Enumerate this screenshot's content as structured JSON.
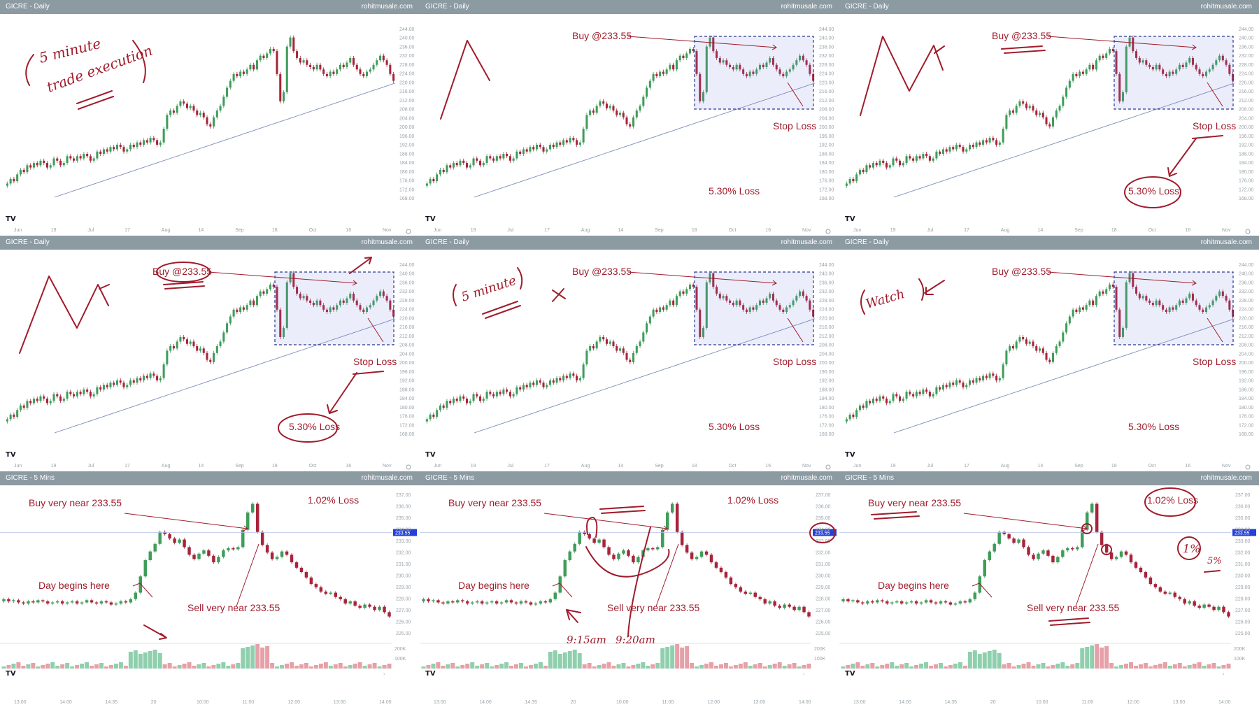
{
  "colors": {
    "header_bg": "#8c9aa2",
    "candle_up": "#3f9d5a",
    "candle_down": "#a8243a",
    "ma_line": "#7a8fb8",
    "annotation": "#a01c2c",
    "box_border": "#2a3690",
    "price_tag": "#2440d8"
  },
  "icons": {
    "brand": "tradingview-logo-icon",
    "settings": "gear-icon",
    "scroll": "chevron-right-icon"
  },
  "annotations": {
    "five_minute_execution_line1": "5 minute",
    "five_minute_execution_line2": "trade execution",
    "buy_level": "Buy @233.55",
    "stop_loss": "Stop Loss",
    "loss_daily": "5.30% Loss",
    "five_minute": "5 minute",
    "watch": "Watch",
    "buy_near": "Buy very near 233.55",
    "sell_near": "Sell very near 233.55",
    "day_begins": "Day begins here",
    "loss_intraday": "1.02% Loss",
    "time_915": "9:15am",
    "time_920": "9:20am",
    "one_percent": "1%",
    "five_percent": "5%"
  },
  "panels": [
    {
      "title": "GICRE - Daily",
      "site": "rohitmusale.com"
    },
    {
      "title": "GICRE - Daily",
      "site": "rohitmusale.com"
    },
    {
      "title": "GICRE - Daily",
      "site": "rohitmusale.com"
    },
    {
      "title": "GICRE - Daily",
      "site": "rohitmusale.com"
    },
    {
      "title": "GICRE - Daily",
      "site": "rohitmusale.com"
    },
    {
      "title": "GICRE - Daily",
      "site": "rohitmusale.com"
    },
    {
      "title": "GICRE - 5 Mins",
      "site": "rohitmusale.com"
    },
    {
      "title": "GICRE - 5 Mins",
      "site": "rohitmusale.com"
    },
    {
      "title": "GICRE - 5 Mins",
      "site": "rohitmusale.com"
    }
  ],
  "chart_data": [
    {
      "type": "candlestick",
      "title": "GICRE - Daily",
      "timeframe": "Daily",
      "ylim": [
        168,
        244
      ],
      "y_ticks": [
        "244.00",
        "240.00",
        "236.00",
        "232.00",
        "228.00",
        "224.00",
        "220.00",
        "216.00",
        "212.00",
        "208.00",
        "204.00",
        "200.00",
        "196.00",
        "192.00",
        "188.00",
        "184.00",
        "180.00",
        "176.00",
        "172.00",
        "168.00"
      ],
      "x_ticks": [
        "Jun",
        "19",
        "Jul",
        "17",
        "Aug",
        "14",
        "Sep",
        "18",
        "Oct",
        "16",
        "Nov"
      ],
      "series": [
        {
          "name": "",
          "close": [
            174,
            176,
            175,
            178,
            180,
            179,
            182,
            181,
            183,
            182,
            184,
            183,
            181,
            182,
            185,
            184,
            182,
            183,
            186,
            185,
            184,
            186,
            185,
            187,
            186,
            184,
            185,
            188,
            187,
            189,
            188,
            190,
            189,
            191,
            190,
            188,
            189,
            191,
            190,
            192,
            191,
            193,
            192,
            194,
            193,
            191,
            192,
            198,
            204,
            206,
            205,
            208,
            210,
            209,
            207,
            208,
            206,
            204,
            205,
            203,
            200,
            199,
            203,
            206,
            208,
            212,
            216,
            219,
            222,
            221,
            223,
            222,
            224,
            226,
            224,
            228,
            230,
            229,
            231,
            233,
            232,
            222,
            210,
            214,
            234,
            238,
            232,
            229,
            227,
            228,
            226,
            225,
            224,
            226,
            224,
            222,
            221,
            223,
            222,
            224,
            226,
            225,
            227,
            229,
            226,
            224,
            222,
            221,
            223,
            224,
            226,
            228,
            230,
            228,
            226,
            222,
            219
          ],
          "open": [
            173,
            174,
            176,
            175,
            178,
            180,
            179,
            182,
            181,
            183,
            182,
            184,
            183,
            181,
            182,
            185,
            184,
            182,
            183,
            186,
            185,
            184,
            186,
            185,
            187,
            186,
            184,
            185,
            188,
            187,
            189,
            188,
            190,
            189,
            191,
            190,
            188,
            189,
            191,
            190,
            192,
            191,
            193,
            192,
            194,
            193,
            191,
            192,
            198,
            204,
            206,
            205,
            208,
            210,
            209,
            207,
            208,
            206,
            204,
            205,
            203,
            200,
            199,
            203,
            206,
            208,
            212,
            216,
            219,
            222,
            221,
            223,
            222,
            224,
            226,
            224,
            228,
            230,
            229,
            231,
            233,
            232,
            222,
            210,
            214,
            234,
            238,
            232,
            229,
            227,
            228,
            226,
            225,
            224,
            226,
            224,
            222,
            221,
            223,
            222,
            224,
            226,
            225,
            227,
            229,
            226,
            224,
            222,
            221,
            223,
            224,
            226,
            228,
            230,
            228,
            226,
            222
          ]
        },
        {
          "name": "",
          "values": [
            168,
            169,
            170,
            171,
            172,
            173,
            174,
            175,
            176,
            177,
            178,
            179,
            180,
            181,
            182,
            183,
            184,
            185,
            186,
            187,
            188,
            189,
            190,
            191,
            192,
            193,
            194,
            195,
            196,
            197,
            198,
            199,
            200,
            201,
            202,
            203,
            204,
            205,
            206,
            207,
            208,
            209,
            210,
            211,
            212,
            213,
            214,
            215,
            216,
            217,
            218
          ]
        }
      ],
      "annotations": [
        "5 minute",
        "trade execution"
      ]
    },
    {
      "type": "candlestick",
      "title": "GICRE - Daily",
      "timeframe": "Daily",
      "ylim": [
        168,
        244
      ],
      "y_ticks": [
        "244.00",
        "240.00",
        "236.00",
        "232.00",
        "228.00",
        "224.00",
        "220.00",
        "216.00",
        "212.00",
        "208.00",
        "204.00",
        "200.00",
        "196.00",
        "192.00",
        "188.00",
        "184.00",
        "180.00",
        "176.00",
        "172.00",
        "168.00"
      ],
      "x_ticks": [
        "Jun",
        "19",
        "Jul",
        "17",
        "Aug",
        "14",
        "Sep",
        "18",
        "Oct",
        "16",
        "Nov"
      ],
      "annotations": [
        "Buy @233.55",
        "Stop Loss",
        "5.30% Loss"
      ],
      "buy_level": 233.55
    },
    {
      "type": "candlestick",
      "title": "GICRE - Daily",
      "timeframe": "Daily",
      "ylim": [
        168,
        244
      ],
      "y_ticks": [
        "244.00",
        "240.00",
        "236.00",
        "232.00",
        "228.00",
        "224.00",
        "220.00",
        "216.00",
        "212.00",
        "208.00",
        "204.00",
        "200.00",
        "196.00",
        "192.00",
        "188.00",
        "184.00",
        "180.00",
        "176.00",
        "172.00",
        "168.00"
      ],
      "x_ticks": [
        "Jun",
        "19",
        "Jul",
        "17",
        "Aug",
        "14",
        "Sep",
        "18",
        "Oct",
        "16",
        "Nov"
      ],
      "annotations": [
        "Buy @233.55",
        "Stop Loss",
        "5.30% Loss"
      ],
      "buy_level": 233.55
    },
    {
      "type": "candlestick",
      "title": "GICRE - Daily",
      "timeframe": "Daily",
      "ylim": [
        168,
        244
      ],
      "y_ticks": [
        "244.00",
        "240.00",
        "236.00",
        "232.00",
        "228.00",
        "224.00",
        "220.00",
        "216.00",
        "212.00",
        "208.00",
        "204.00",
        "200.00",
        "196.00",
        "192.00",
        "188.00",
        "184.00",
        "180.00",
        "176.00",
        "172.00",
        "168.00"
      ],
      "x_ticks": [
        "Jun",
        "19",
        "Jul",
        "17",
        "Aug",
        "14",
        "Sep",
        "18",
        "Oct",
        "16",
        "Nov"
      ],
      "annotations": [
        "Buy @233.55",
        "Stop Loss",
        "5.30% Loss"
      ],
      "buy_level": 233.55
    },
    {
      "type": "candlestick",
      "title": "GICRE - Daily",
      "timeframe": "Daily",
      "ylim": [
        168,
        244
      ],
      "y_ticks": [
        "244.00",
        "240.00",
        "236.00",
        "232.00",
        "228.00",
        "224.00",
        "220.00",
        "216.00",
        "212.00",
        "208.00",
        "204.00",
        "200.00",
        "196.00",
        "192.00",
        "188.00",
        "184.00",
        "180.00",
        "176.00",
        "172.00",
        "168.00"
      ],
      "x_ticks": [
        "Jun",
        "19",
        "Jul",
        "17",
        "Aug",
        "14",
        "Sep",
        "18",
        "Oct",
        "16",
        "Nov"
      ],
      "annotations": [
        "Buy @233.55",
        "Stop Loss",
        "5.30% Loss",
        "5 minute"
      ],
      "buy_level": 233.55
    },
    {
      "type": "candlestick",
      "title": "GICRE - Daily",
      "timeframe": "Daily",
      "ylim": [
        168,
        244
      ],
      "y_ticks": [
        "244.00",
        "240.00",
        "236.00",
        "232.00",
        "228.00",
        "224.00",
        "220.00",
        "216.00",
        "212.00",
        "208.00",
        "204.00",
        "200.00",
        "196.00",
        "192.00",
        "188.00",
        "184.00",
        "180.00",
        "176.00",
        "172.00",
        "168.00"
      ],
      "x_ticks": [
        "Jun",
        "19",
        "Jul",
        "17",
        "Aug",
        "14",
        "Sep",
        "18",
        "Oct",
        "16",
        "Nov"
      ],
      "annotations": [
        "Buy @233.55",
        "Stop Loss",
        "5.30% Loss",
        "Watch"
      ],
      "buy_level": 233.55
    },
    {
      "type": "candlestick",
      "title": "GICRE - 5 Mins",
      "timeframe": "5 Mins",
      "ylim": [
        225,
        237
      ],
      "y_ticks": [
        "237.00",
        "236.00",
        "235.00",
        "234.00",
        "233.00",
        "232.00",
        "231.00",
        "230.00",
        "229.00",
        "228.00",
        "227.00",
        "226.00",
        "225.00"
      ],
      "x_ticks": [
        "13:00",
        "14:00",
        "14:35",
        "20",
        "10:00",
        "11:00",
        "12:00",
        "13:00",
        "14:00"
      ],
      "price_tag": "233.55",
      "series": [
        {
          "name": "",
          "close": [
            227.4,
            227.2,
            227.3,
            227.1,
            227.0,
            227.2,
            227.1,
            227.3,
            227.2,
            227.0,
            227.1,
            227.2,
            227.0,
            227.1,
            227.2,
            227.0,
            227.1,
            227.3,
            227.1,
            227.0,
            227.2,
            227.1,
            226.9,
            227.0,
            227.2,
            227.1,
            227.4,
            228.0,
            229.5,
            231.0,
            231.8,
            232.5,
            233.6,
            233.4,
            233.0,
            232.6,
            232.9,
            232.2,
            231.5,
            231.1,
            231.6,
            231.9,
            231.4,
            230.8,
            231.3,
            231.9,
            232.1,
            232.0,
            232.2,
            233.8,
            235.4,
            236.2,
            233.6,
            232.4,
            231.7,
            231.1,
            231.3,
            231.8,
            231.5,
            230.8,
            230.3,
            229.9,
            229.4,
            228.8,
            228.5,
            228.1,
            227.9,
            228.0,
            227.6,
            227.4,
            227.0,
            227.2,
            226.8,
            226.6,
            226.9,
            226.7,
            226.4,
            226.7,
            226.2,
            225.8
          ],
          "open": [
            227.2,
            227.4,
            227.2,
            227.3,
            227.1,
            227.0,
            227.2,
            227.1,
            227.3,
            227.2,
            227.0,
            227.1,
            227.2,
            227.0,
            227.1,
            227.2,
            227.0,
            227.1,
            227.3,
            227.1,
            227.0,
            227.2,
            227.1,
            226.9,
            227.0,
            227.2,
            227.1,
            227.4,
            228.0,
            229.5,
            231.0,
            231.8,
            232.5,
            233.6,
            233.4,
            233.0,
            232.6,
            232.9,
            232.2,
            231.5,
            231.1,
            231.6,
            231.9,
            231.4,
            230.8,
            231.3,
            231.9,
            232.1,
            232.0,
            232.2,
            233.8,
            235.4,
            236.2,
            233.6,
            232.4,
            231.7,
            231.1,
            231.3,
            231.8,
            231.5,
            230.8,
            230.3,
            229.9,
            229.4,
            228.8,
            228.5,
            228.1,
            227.9,
            228.0,
            227.6,
            227.4,
            227.0,
            227.2,
            226.8,
            226.6,
            226.9,
            226.7,
            226.4,
            226.7,
            226.2
          ]
        }
      ],
      "volume_ticks": [
        "200K",
        "100K"
      ],
      "annotations": [
        "Buy very near 233.55",
        "Sell very near 233.55",
        "Day begins here",
        "1.02% Loss"
      ]
    },
    {
      "type": "candlestick",
      "title": "GICRE - 5 Mins",
      "timeframe": "5 Mins",
      "ylim": [
        225,
        237
      ],
      "y_ticks": [
        "237.00",
        "236.00",
        "235.00",
        "234.00",
        "233.00",
        "232.00",
        "231.00",
        "230.00",
        "229.00",
        "228.00",
        "227.00",
        "226.00",
        "225.00"
      ],
      "x_ticks": [
        "13:00",
        "14:00",
        "14:35",
        "20",
        "10:00",
        "11:00",
        "12:00",
        "13:00",
        "14:00"
      ],
      "price_tag": "233.55",
      "annotations": [
        "Buy very near 233.55",
        "Sell very near 233.55",
        "Day begins here",
        "1.02% Loss",
        "9:15am",
        "9:20am"
      ]
    },
    {
      "type": "candlestick",
      "title": "GICRE - 5 Mins",
      "timeframe": "5 Mins",
      "ylim": [
        225,
        237
      ],
      "y_ticks": [
        "237.00",
        "236.00",
        "235.00",
        "234.00",
        "233.00",
        "232.00",
        "231.00",
        "230.00",
        "229.00",
        "228.00",
        "227.00",
        "226.00",
        "225.00"
      ],
      "x_ticks": [
        "13:00",
        "14:00",
        "14:35",
        "20",
        "10:00",
        "11:00",
        "12:00",
        "13:00",
        "14:00"
      ],
      "price_tag": "233.55",
      "annotations": [
        "Buy very near 233.55",
        "Sell very near 233.55",
        "Day begins here",
        "1.02% Loss",
        "1%",
        "5%"
      ]
    }
  ]
}
